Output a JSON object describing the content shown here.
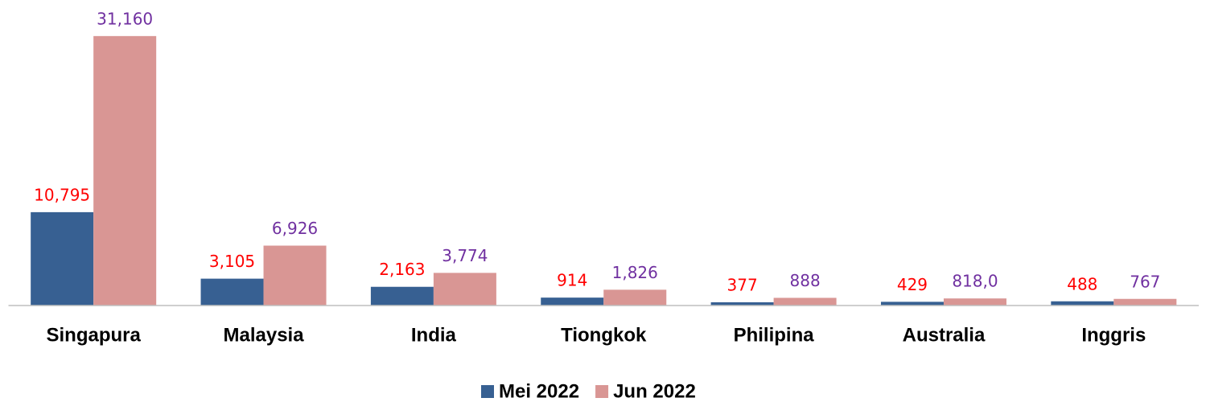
{
  "chart_data": {
    "type": "bar",
    "categories": [
      "Singapura",
      "Malaysia",
      "India",
      "Tiongkok",
      "Philipina",
      "Australia",
      "Inggris"
    ],
    "series": [
      {
        "name": "Mei 2022",
        "color": "#376092",
        "label_color": "#ff0000",
        "values": [
          10795,
          3105,
          2163,
          914,
          377,
          429,
          488
        ],
        "value_labels": [
          "10,795",
          "3,105",
          "2,163",
          "914",
          "377",
          "429",
          "488"
        ]
      },
      {
        "name": "Jun 2022",
        "color": "#d99694",
        "label_color": "#7030a0",
        "values": [
          31160,
          6926,
          3774,
          1826,
          888,
          818.0,
          767
        ],
        "value_labels": [
          "31,160",
          "6,926",
          "3,774",
          "1,826",
          "888",
          "818,0",
          "767"
        ]
      }
    ],
    "ylim": [
      0,
      34400
    ],
    "grid": false,
    "legend": "bottom"
  }
}
